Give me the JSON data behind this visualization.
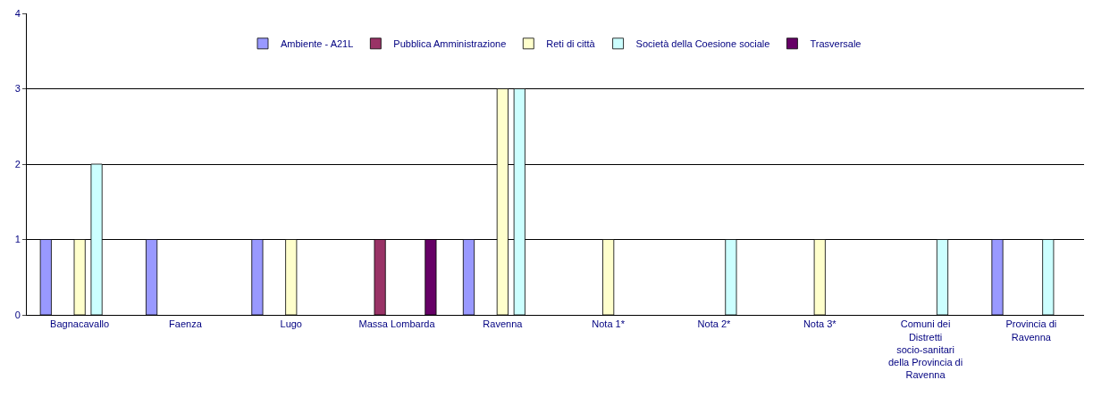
{
  "chart_data": {
    "type": "bar",
    "categories": [
      "Bagnacavallo",
      "Faenza",
      "Lugo",
      "Massa Lombarda",
      "Ravenna",
      "Nota 1*",
      "Nota 2*",
      "Nota 3*",
      "Comuni dei Distretti socio-sanitari della Provincia di Ravenna",
      "Provincia di Ravenna"
    ],
    "series": [
      {
        "name": "Ambiente - A21L",
        "color": "#9999ff",
        "values": [
          1,
          1,
          1,
          null,
          1,
          null,
          null,
          null,
          null,
          1
        ]
      },
      {
        "name": "Pubblica Amministrazione",
        "color": "#993366",
        "values": [
          null,
          null,
          null,
          1,
          null,
          null,
          null,
          null,
          null,
          null
        ]
      },
      {
        "name": "Reti di città",
        "color": "#ffffcc",
        "values": [
          1,
          null,
          1,
          null,
          3,
          1,
          null,
          1,
          null,
          null
        ]
      },
      {
        "name": "Società della Coesione sociale",
        "color": "#ccffff",
        "values": [
          2,
          null,
          null,
          null,
          3,
          null,
          1,
          null,
          1,
          1
        ]
      },
      {
        "name": "Trasversale",
        "color": "#660066",
        "values": [
          null,
          null,
          null,
          1,
          null,
          null,
          null,
          null,
          null,
          null
        ]
      }
    ],
    "ylim": [
      0,
      4
    ],
    "yticks": [
      0,
      1,
      2,
      3,
      4
    ],
    "grid": "y",
    "legend": "top"
  }
}
